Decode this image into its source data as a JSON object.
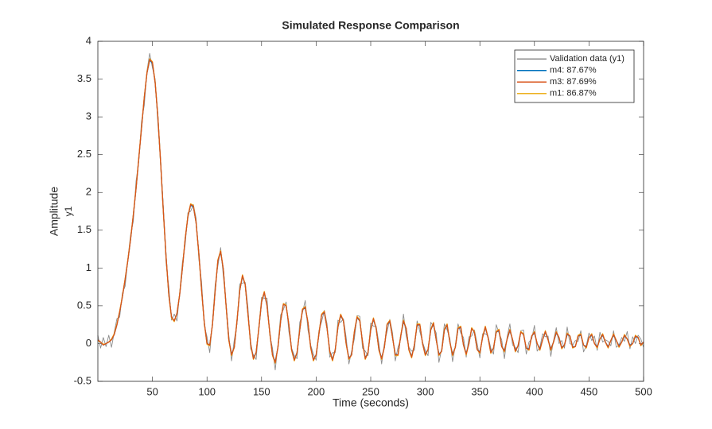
{
  "chart_data": {
    "type": "line",
    "title": "Simulated Response Comparison",
    "xlabel": "Time (seconds)",
    "ylabel": "Amplitude",
    "ylabel2": "y1",
    "xlim": [
      0,
      500
    ],
    "ylim": [
      -0.5,
      4
    ],
    "xticks": [
      50,
      100,
      150,
      200,
      250,
      300,
      350,
      400,
      450,
      500
    ],
    "yticks": [
      -0.5,
      0,
      0.5,
      1,
      1.5,
      2,
      2.5,
      3,
      3.5,
      4
    ],
    "legend": "northeast",
    "x": [
      0,
      2.5,
      5,
      7.5,
      10,
      12.5,
      15,
      17.5,
      20,
      22.5,
      25,
      27.5,
      30,
      32.5,
      35,
      37.5,
      40,
      42.5,
      45,
      47.5,
      50,
      52.5,
      55,
      57.5,
      60,
      62.5,
      65,
      67.5,
      70,
      72.5,
      75,
      77.5,
      80,
      82.5,
      85,
      87.5,
      90,
      92.5,
      95,
      97.5,
      100,
      102.5,
      105,
      107.5,
      110,
      112.5,
      115,
      117.5,
      120,
      122.5,
      125,
      127.5,
      130,
      132.5,
      135,
      137.5,
      140,
      142.5,
      145,
      147.5,
      150,
      152.5,
      155,
      157.5,
      160,
      162.5,
      165,
      167.5,
      170,
      172.5,
      175,
      177.5,
      180,
      182.5,
      185,
      187.5,
      190,
      192.5,
      195,
      197.5,
      200,
      202.5,
      205,
      207.5,
      210,
      212.5,
      215,
      217.5,
      220,
      222.5,
      225,
      227.5,
      230,
      232.5,
      235,
      237.5,
      240,
      242.5,
      245,
      247.5,
      250,
      252.5,
      255,
      257.5,
      260,
      262.5,
      265,
      267.5,
      270,
      272.5,
      275,
      277.5,
      280,
      282.5,
      285,
      287.5,
      290,
      292.5,
      295,
      297.5,
      300,
      302.5,
      305,
      307.5,
      310,
      312.5,
      315,
      317.5,
      320,
      322.5,
      325,
      327.5,
      330,
      332.5,
      335,
      337.5,
      340,
      342.5,
      345,
      347.5,
      350,
      352.5,
      355,
      357.5,
      360,
      362.5,
      365,
      367.5,
      370,
      372.5,
      375,
      377.5,
      380,
      382.5,
      385,
      387.5,
      390,
      392.5,
      395,
      397.5,
      400,
      402.5,
      405,
      407.5,
      410,
      412.5,
      415,
      417.5,
      420,
      422.5,
      425,
      427.5,
      430,
      432.5,
      435,
      437.5,
      440,
      442.5,
      445,
      447.5,
      450,
      452.5,
      455,
      457.5,
      460,
      462.5,
      465,
      467.5,
      470,
      472.5,
      475,
      477.5,
      480,
      482.5,
      485,
      487.5,
      490,
      492.5,
      495,
      497.5,
      500
    ],
    "series": [
      {
        "name": "Validation data (y1)",
        "color": "#8c8c8c",
        "values": [
          0.11,
          -0.06,
          0.08,
          -0.04,
          0.11,
          -0.05,
          0.15,
          0.33,
          0.35,
          0.67,
          0.76,
          1.12,
          1.44,
          1.62,
          2.15,
          2.41,
          2.94,
          3.15,
          3.61,
          3.84,
          3.65,
          3.5,
          2.91,
          2.42,
          1.81,
          1.07,
          0.75,
          0.31,
          0.39,
          0.3,
          0.68,
          1.08,
          1.31,
          1.73,
          1.75,
          1.84,
          1.66,
          1.12,
          0.82,
          0.24,
          0.09,
          -0.12,
          0.28,
          0.78,
          1.03,
          1.27,
          0.89,
          0.52,
          0.11,
          -0.23,
          0.05,
          0.26,
          0.79,
          0.8,
          0.81,
          0.48,
          -0.07,
          -0.15,
          -0.21,
          0.22,
          0.61,
          0.6,
          0.6,
          0.11,
          -0.06,
          -0.35,
          -0.02,
          0.38,
          0.45,
          0.55,
          0.16,
          -0.06,
          -0.16,
          -0.2,
          0.28,
          0.41,
          0.57,
          0.18,
          -0.02,
          -0.14,
          -0.22,
          0.17,
          0.29,
          0.44,
          0.26,
          -0.18,
          -0.12,
          -0.12,
          0.31,
          0.28,
          0.33,
          0.08,
          -0.27,
          -0.1,
          0.06,
          0.37,
          0.36,
          -0.06,
          -0.1,
          -0.16,
          0.27,
          0.23,
          0.23,
          0.0,
          -0.27,
          0.0,
          0.16,
          0.32,
          0.14,
          -0.23,
          -0.05,
          0.06,
          0.39,
          0.1,
          -0.05,
          -0.1,
          -0.09,
          0.3,
          0.16,
          0.02,
          -0.09,
          -0.16,
          0.28,
          0.23,
          0.14,
          -0.25,
          -0.07,
          0.26,
          0.18,
          0.07,
          -0.24,
          -0.03,
          0.26,
          0.14,
          0.08,
          -0.18,
          0.09,
          0.1,
          0.18,
          0.0,
          -0.19,
          0.13,
          0.13,
          0.1,
          -0.06,
          -0.14,
          0.25,
          0.14,
          0.05,
          -0.2,
          0.09,
          0.26,
          -0.02,
          -0.05,
          -0.12,
          0.17,
          0.18,
          -0.14,
          0.02,
          0.06,
          0.24,
          -0.1,
          -0.05,
          0.13,
          0.09,
          0.1,
          -0.17,
          0.04,
          0.21,
          0.0,
          0.04,
          -0.06,
          0.22,
          0.0,
          -0.02,
          0.04,
          0.03,
          0.17,
          -0.11,
          -0.03,
          0.14,
          0.04,
          0.1,
          -0.09,
          0.15,
          0.02,
          0.05,
          0.03,
          -0.03,
          0.17,
          -0.05,
          -0.02,
          0.08,
          0.03,
          0.16,
          -0.07,
          0.09,
          0.0,
          0.11,
          0.06,
          -0.05
        ]
      },
      {
        "name": "m4: 87.67%",
        "color": "#0072bd",
        "values": [
          0.05,
          0.02,
          -0.02,
          0.0,
          0.02,
          0.05,
          0.12,
          0.25,
          0.42,
          0.62,
          0.85,
          1.1,
          1.38,
          1.7,
          2.05,
          2.45,
          2.85,
          3.25,
          3.58,
          3.75,
          3.71,
          3.45,
          3.0,
          2.4,
          1.75,
          1.15,
          0.65,
          0.35,
          0.3,
          0.4,
          0.65,
          1.0,
          1.38,
          1.68,
          1.83,
          1.81,
          1.6,
          1.2,
          0.72,
          0.28,
          0.0,
          -0.02,
          0.25,
          0.7,
          1.1,
          1.21,
          0.98,
          0.5,
          0.05,
          -0.14,
          -0.05,
          0.3,
          0.7,
          0.89,
          0.78,
          0.4,
          0.0,
          -0.19,
          -0.12,
          0.2,
          0.55,
          0.67,
          0.5,
          0.15,
          -0.15,
          -0.24,
          -0.05,
          0.3,
          0.52,
          0.5,
          0.25,
          -0.08,
          -0.21,
          -0.12,
          0.18,
          0.45,
          0.47,
          0.28,
          -0.05,
          -0.21,
          -0.15,
          0.12,
          0.38,
          0.41,
          0.2,
          -0.1,
          -0.21,
          -0.08,
          0.22,
          0.37,
          0.3,
          0.0,
          -0.19,
          -0.15,
          0.15,
          0.34,
          0.3,
          0.02,
          -0.19,
          -0.12,
          0.18,
          0.32,
          0.2,
          -0.08,
          -0.19,
          -0.05,
          0.25,
          0.29,
          0.08,
          -0.14,
          -0.15,
          0.1,
          0.29,
          0.2,
          -0.08,
          -0.17,
          -0.02,
          0.24,
          0.25,
          0.0,
          -0.14,
          -0.08,
          0.18,
          0.26,
          0.05,
          -0.14,
          -0.1,
          0.18,
          0.24,
          0.02,
          -0.14,
          -0.05,
          0.2,
          0.21,
          -0.02,
          -0.13,
          0.0,
          0.2,
          0.15,
          -0.08,
          -0.11,
          0.08,
          0.21,
          0.08,
          -0.11,
          -0.06,
          0.15,
          0.17,
          -0.04,
          -0.09,
          0.06,
          0.17,
          0.05,
          -0.09,
          -0.03,
          0.15,
          0.12,
          -0.06,
          -0.07,
          0.1,
          0.14,
          0.0,
          -0.07,
          0.05,
          0.15,
          0.05,
          -0.07,
          0.02,
          0.14,
          0.08,
          -0.05,
          -0.02,
          0.12,
          0.1,
          -0.04,
          -0.04,
          0.1,
          0.11,
          -0.02,
          -0.04,
          0.08,
          0.11,
          0.0,
          -0.04,
          0.06,
          0.11,
          0.02,
          -0.04,
          0.04,
          0.11,
          0.04,
          -0.03,
          0.02,
          0.1,
          0.06,
          -0.02,
          0.0,
          0.09,
          0.08,
          -0.02,
          0.02
        ]
      },
      {
        "name": "m3: 87.69%",
        "color": "#d95319",
        "values": [
          0.05,
          0.02,
          -0.02,
          0.0,
          0.02,
          0.05,
          0.12,
          0.25,
          0.42,
          0.62,
          0.85,
          1.1,
          1.38,
          1.7,
          2.05,
          2.45,
          2.85,
          3.25,
          3.58,
          3.76,
          3.72,
          3.45,
          3.0,
          2.4,
          1.75,
          1.15,
          0.65,
          0.35,
          0.3,
          0.4,
          0.65,
          1.0,
          1.38,
          1.68,
          1.84,
          1.82,
          1.6,
          1.2,
          0.72,
          0.28,
          0.0,
          -0.02,
          0.25,
          0.7,
          1.1,
          1.22,
          0.98,
          0.5,
          0.05,
          -0.15,
          -0.05,
          0.3,
          0.7,
          0.9,
          0.78,
          0.4,
          0.0,
          -0.2,
          -0.12,
          0.2,
          0.55,
          0.68,
          0.5,
          0.15,
          -0.15,
          -0.25,
          -0.05,
          0.3,
          0.52,
          0.5,
          0.25,
          -0.08,
          -0.22,
          -0.12,
          0.18,
          0.45,
          0.48,
          0.28,
          -0.05,
          -0.22,
          -0.15,
          0.12,
          0.38,
          0.42,
          0.2,
          -0.1,
          -0.22,
          -0.08,
          0.22,
          0.38,
          0.3,
          0.0,
          -0.2,
          -0.15,
          0.15,
          0.35,
          0.3,
          0.02,
          -0.2,
          -0.12,
          0.18,
          0.33,
          0.2,
          -0.08,
          -0.2,
          -0.05,
          0.25,
          0.3,
          0.08,
          -0.15,
          -0.15,
          0.1,
          0.3,
          0.2,
          -0.08,
          -0.18,
          -0.02,
          0.25,
          0.25,
          0.0,
          -0.15,
          -0.08,
          0.18,
          0.27,
          0.05,
          -0.15,
          -0.1,
          0.18,
          0.25,
          0.02,
          -0.15,
          -0.05,
          0.2,
          0.22,
          -0.02,
          -0.14,
          0.0,
          0.2,
          0.15,
          -0.08,
          -0.12,
          0.08,
          0.22,
          0.08,
          -0.12,
          -0.06,
          0.15,
          0.18,
          -0.04,
          -0.1,
          0.06,
          0.18,
          0.05,
          -0.1,
          -0.03,
          0.15,
          0.12,
          -0.06,
          -0.08,
          0.1,
          0.15,
          0.0,
          -0.08,
          0.05,
          0.16,
          0.05,
          -0.08,
          0.02,
          0.15,
          0.08,
          -0.06,
          -0.02,
          0.13,
          0.1,
          -0.05,
          -0.04,
          0.1,
          0.12,
          -0.02,
          -0.05,
          0.08,
          0.12,
          0.0,
          -0.05,
          0.06,
          0.12,
          0.02,
          -0.05,
          0.04,
          0.12,
          0.04,
          -0.04,
          0.02,
          0.11,
          0.06,
          -0.03,
          0.0,
          0.1,
          0.08,
          -0.02,
          0.02
        ]
      },
      {
        "name": "m1: 86.87%",
        "color": "#edb120",
        "values": [
          0.04,
          0.02,
          -0.01,
          0.0,
          0.02,
          0.06,
          0.13,
          0.26,
          0.43,
          0.63,
          0.86,
          1.11,
          1.39,
          1.71,
          2.06,
          2.46,
          2.86,
          3.26,
          3.59,
          3.77,
          3.73,
          3.46,
          3.0,
          2.4,
          1.74,
          1.14,
          0.64,
          0.34,
          0.29,
          0.4,
          0.66,
          1.01,
          1.39,
          1.69,
          1.85,
          1.83,
          1.6,
          1.19,
          0.71,
          0.27,
          -0.01,
          -0.03,
          0.25,
          0.71,
          1.11,
          1.23,
          0.98,
          0.49,
          0.04,
          -0.16,
          -0.05,
          0.31,
          0.71,
          0.91,
          0.78,
          0.39,
          -0.01,
          -0.21,
          -0.12,
          0.21,
          0.56,
          0.69,
          0.5,
          0.14,
          -0.16,
          -0.26,
          -0.05,
          0.31,
          0.53,
          0.51,
          0.25,
          -0.09,
          -0.23,
          -0.12,
          0.19,
          0.46,
          0.49,
          0.28,
          -0.06,
          -0.23,
          -0.15,
          0.13,
          0.39,
          0.43,
          0.2,
          -0.11,
          -0.23,
          -0.08,
          0.23,
          0.39,
          0.3,
          -0.01,
          -0.21,
          -0.15,
          0.16,
          0.36,
          0.31,
          0.01,
          -0.21,
          -0.12,
          0.19,
          0.34,
          0.2,
          -0.09,
          -0.21,
          -0.05,
          0.26,
          0.31,
          0.08,
          -0.16,
          -0.16,
          0.11,
          0.31,
          0.2,
          -0.09,
          -0.19,
          -0.02,
          0.26,
          0.26,
          0.0,
          -0.16,
          -0.08,
          0.19,
          0.28,
          0.05,
          -0.16,
          -0.1,
          0.19,
          0.26,
          0.02,
          -0.16,
          -0.05,
          0.21,
          0.23,
          -0.02,
          -0.15,
          0.0,
          0.21,
          0.16,
          -0.08,
          -0.13,
          0.09,
          0.23,
          0.08,
          -0.13,
          -0.06,
          0.16,
          0.19,
          -0.04,
          -0.11,
          0.06,
          0.19,
          0.05,
          -0.11,
          -0.03,
          0.16,
          0.13,
          -0.06,
          -0.09,
          0.1,
          0.16,
          0.0,
          -0.09,
          0.05,
          0.17,
          0.05,
          -0.09,
          0.02,
          0.16,
          0.08,
          -0.07,
          -0.02,
          0.14,
          0.1,
          -0.06,
          -0.04,
          0.11,
          0.13,
          -0.02,
          -0.06,
          0.08,
          0.13,
          0.0,
          -0.06,
          0.06,
          0.13,
          0.02,
          -0.06,
          0.04,
          0.13,
          0.04,
          -0.05,
          0.02,
          0.12,
          0.06,
          -0.04,
          0.0,
          0.11,
          0.08,
          -0.03,
          0.02
        ]
      }
    ]
  }
}
